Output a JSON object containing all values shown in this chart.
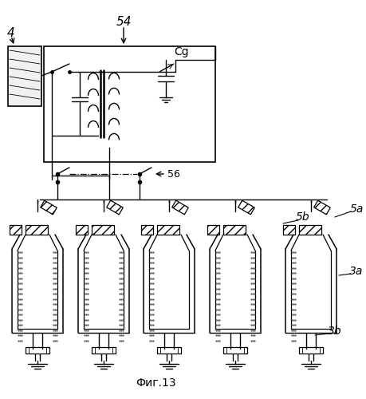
{
  "title": "Фиг.13",
  "label_4": "4",
  "label_54": "54",
  "label_56": "56",
  "label_Cg": "Cg",
  "label_5a": "5a",
  "label_5b": "5b",
  "label_3a": "3a",
  "label_3b": "3b",
  "bg_color": "#ffffff",
  "line_color": "#000000"
}
